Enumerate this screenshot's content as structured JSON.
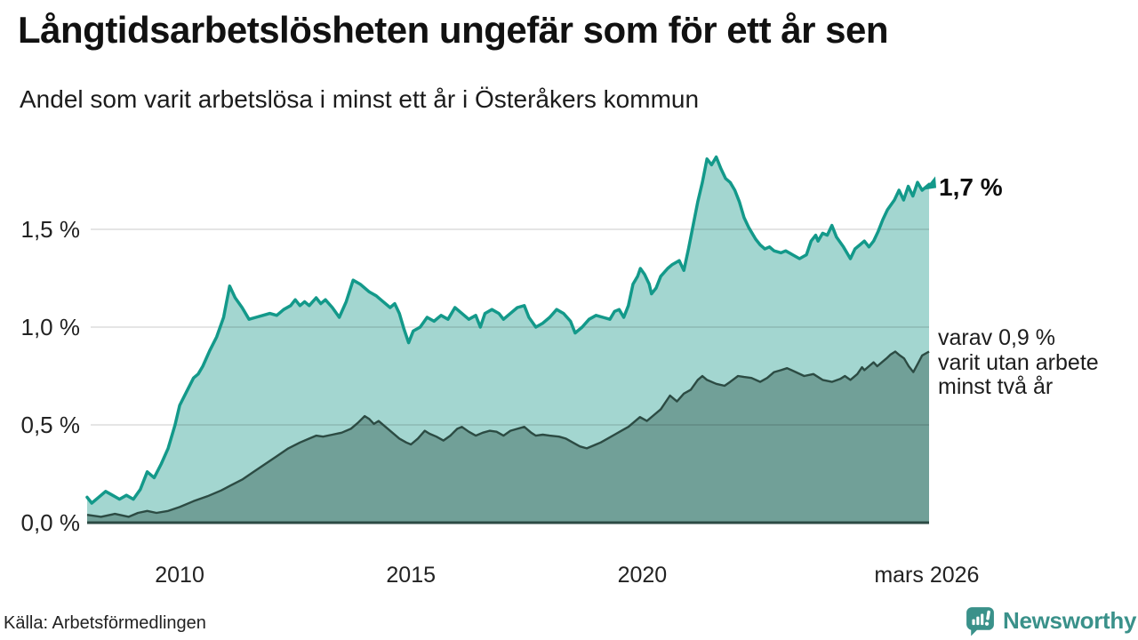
{
  "header": {
    "title": "Långtidsarbetslösheten ungefär som för ett år sen",
    "subtitle": "Andel som varit arbetslösa i minst ett år i Österåkers kommun"
  },
  "footer": {
    "source": "Källa: Arbetsförmedlingen",
    "brand": "Newsworthy"
  },
  "colors": {
    "series1_line": "#13998a",
    "series1_fill": "#a3d6d0",
    "series2_line": "#2c4b43",
    "series2_fill": "#71a098",
    "baseline": "#2c4a43",
    "gridline": "rgba(0,0,0,0.10)",
    "brand_teal": "#3a918a"
  },
  "chart_data": {
    "type": "area",
    "title": "Långtidsarbetslösheten ungefär som för ett år sen",
    "subtitle": "Andel som varit arbetslösa i minst ett år i Österåkers kommun",
    "xlim": [
      2008,
      2026.2
    ],
    "ylim": [
      0,
      1.9
    ],
    "grid": "horizontal",
    "x_ticks": [
      {
        "year": 2010,
        "label": "2010"
      },
      {
        "year": 2015,
        "label": "2015"
      },
      {
        "year": 2020,
        "label": "2020"
      },
      {
        "year": 2026.15,
        "label": "mars 2026"
      }
    ],
    "y_ticks": [
      {
        "value": 0.0,
        "label": "0,0 %"
      },
      {
        "value": 0.5,
        "label": "0,5 %"
      },
      {
        "value": 1.0,
        "label": "1,0 %"
      },
      {
        "value": 1.5,
        "label": "1,5 %"
      }
    ],
    "annotations": {
      "end_label": "1,7 %",
      "end_value": 1.7,
      "secondary_line1": "varav 0,9 %",
      "secondary_line2": "varit utan arbete",
      "secondary_line3": "minst två år",
      "secondary_value": 0.9
    },
    "series": [
      {
        "name": "Andel arbetslösa minst ett år",
        "points": [
          [
            2008.0,
            0.13
          ],
          [
            2008.1,
            0.1
          ],
          [
            2008.25,
            0.13
          ],
          [
            2008.4,
            0.16
          ],
          [
            2008.55,
            0.14
          ],
          [
            2008.7,
            0.12
          ],
          [
            2008.85,
            0.14
          ],
          [
            2009.0,
            0.12
          ],
          [
            2009.15,
            0.17
          ],
          [
            2009.3,
            0.26
          ],
          [
            2009.45,
            0.23
          ],
          [
            2009.6,
            0.3
          ],
          [
            2009.75,
            0.38
          ],
          [
            2009.9,
            0.5
          ],
          [
            2010.0,
            0.6
          ],
          [
            2010.15,
            0.67
          ],
          [
            2010.3,
            0.74
          ],
          [
            2010.4,
            0.76
          ],
          [
            2010.5,
            0.8
          ],
          [
            2010.65,
            0.88
          ],
          [
            2010.8,
            0.95
          ],
          [
            2010.95,
            1.05
          ],
          [
            2011.08,
            1.21
          ],
          [
            2011.2,
            1.15
          ],
          [
            2011.35,
            1.1
          ],
          [
            2011.5,
            1.04
          ],
          [
            2011.65,
            1.05
          ],
          [
            2011.8,
            1.06
          ],
          [
            2011.95,
            1.07
          ],
          [
            2012.1,
            1.06
          ],
          [
            2012.25,
            1.09
          ],
          [
            2012.4,
            1.11
          ],
          [
            2012.5,
            1.14
          ],
          [
            2012.6,
            1.11
          ],
          [
            2012.7,
            1.13
          ],
          [
            2012.8,
            1.11
          ],
          [
            2012.95,
            1.15
          ],
          [
            2013.05,
            1.12
          ],
          [
            2013.15,
            1.14
          ],
          [
            2013.3,
            1.1
          ],
          [
            2013.45,
            1.05
          ],
          [
            2013.6,
            1.13
          ],
          [
            2013.75,
            1.24
          ],
          [
            2013.9,
            1.22
          ],
          [
            2014.0,
            1.2
          ],
          [
            2014.1,
            1.18
          ],
          [
            2014.25,
            1.16
          ],
          [
            2014.4,
            1.13
          ],
          [
            2014.55,
            1.1
          ],
          [
            2014.65,
            1.12
          ],
          [
            2014.75,
            1.07
          ],
          [
            2014.85,
            0.99
          ],
          [
            2014.95,
            0.92
          ],
          [
            2015.05,
            0.98
          ],
          [
            2015.2,
            1.0
          ],
          [
            2015.35,
            1.05
          ],
          [
            2015.5,
            1.03
          ],
          [
            2015.65,
            1.06
          ],
          [
            2015.8,
            1.04
          ],
          [
            2015.95,
            1.1
          ],
          [
            2016.1,
            1.07
          ],
          [
            2016.25,
            1.04
          ],
          [
            2016.4,
            1.06
          ],
          [
            2016.5,
            1.0
          ],
          [
            2016.6,
            1.07
          ],
          [
            2016.75,
            1.09
          ],
          [
            2016.9,
            1.07
          ],
          [
            2017.0,
            1.04
          ],
          [
            2017.15,
            1.07
          ],
          [
            2017.3,
            1.1
          ],
          [
            2017.45,
            1.11
          ],
          [
            2017.55,
            1.05
          ],
          [
            2017.7,
            1.0
          ],
          [
            2017.85,
            1.02
          ],
          [
            2018.0,
            1.05
          ],
          [
            2018.15,
            1.09
          ],
          [
            2018.3,
            1.07
          ],
          [
            2018.45,
            1.03
          ],
          [
            2018.55,
            0.97
          ],
          [
            2018.7,
            1.0
          ],
          [
            2018.85,
            1.04
          ],
          [
            2019.0,
            1.06
          ],
          [
            2019.15,
            1.05
          ],
          [
            2019.3,
            1.04
          ],
          [
            2019.4,
            1.08
          ],
          [
            2019.5,
            1.09
          ],
          [
            2019.6,
            1.05
          ],
          [
            2019.7,
            1.11
          ],
          [
            2019.8,
            1.22
          ],
          [
            2019.9,
            1.26
          ],
          [
            2019.96,
            1.3
          ],
          [
            2020.05,
            1.27
          ],
          [
            2020.15,
            1.22
          ],
          [
            2020.2,
            1.17
          ],
          [
            2020.3,
            1.2
          ],
          [
            2020.4,
            1.26
          ],
          [
            2020.55,
            1.3
          ],
          [
            2020.65,
            1.32
          ],
          [
            2020.8,
            1.34
          ],
          [
            2020.9,
            1.29
          ],
          [
            2021.0,
            1.4
          ],
          [
            2021.1,
            1.52
          ],
          [
            2021.2,
            1.64
          ],
          [
            2021.3,
            1.74
          ],
          [
            2021.4,
            1.86
          ],
          [
            2021.5,
            1.83
          ],
          [
            2021.6,
            1.87
          ],
          [
            2021.7,
            1.81
          ],
          [
            2021.8,
            1.76
          ],
          [
            2021.9,
            1.74
          ],
          [
            2022.0,
            1.7
          ],
          [
            2022.1,
            1.64
          ],
          [
            2022.2,
            1.56
          ],
          [
            2022.3,
            1.51
          ],
          [
            2022.45,
            1.45
          ],
          [
            2022.55,
            1.42
          ],
          [
            2022.65,
            1.4
          ],
          [
            2022.75,
            1.41
          ],
          [
            2022.85,
            1.39
          ],
          [
            2023.0,
            1.38
          ],
          [
            2023.1,
            1.39
          ],
          [
            2023.25,
            1.37
          ],
          [
            2023.4,
            1.35
          ],
          [
            2023.55,
            1.37
          ],
          [
            2023.65,
            1.44
          ],
          [
            2023.75,
            1.47
          ],
          [
            2023.8,
            1.44
          ],
          [
            2023.9,
            1.48
          ],
          [
            2024.0,
            1.47
          ],
          [
            2024.1,
            1.52
          ],
          [
            2024.2,
            1.46
          ],
          [
            2024.35,
            1.41
          ],
          [
            2024.5,
            1.35
          ],
          [
            2024.6,
            1.4
          ],
          [
            2024.7,
            1.42
          ],
          [
            2024.8,
            1.44
          ],
          [
            2024.9,
            1.41
          ],
          [
            2025.0,
            1.44
          ],
          [
            2025.1,
            1.49
          ],
          [
            2025.2,
            1.55
          ],
          [
            2025.3,
            1.6
          ],
          [
            2025.45,
            1.65
          ],
          [
            2025.55,
            1.7
          ],
          [
            2025.65,
            1.65
          ],
          [
            2025.75,
            1.72
          ],
          [
            2025.85,
            1.67
          ],
          [
            2025.95,
            1.74
          ],
          [
            2026.05,
            1.7
          ],
          [
            2026.2,
            1.73
          ]
        ]
      },
      {
        "name": "varav utan arbete minst två år",
        "points": [
          [
            2008.0,
            0.04
          ],
          [
            2008.3,
            0.03
          ],
          [
            2008.6,
            0.045
          ],
          [
            2008.9,
            0.03
          ],
          [
            2009.1,
            0.05
          ],
          [
            2009.3,
            0.06
          ],
          [
            2009.5,
            0.05
          ],
          [
            2009.75,
            0.06
          ],
          [
            2010.0,
            0.08
          ],
          [
            2010.3,
            0.11
          ],
          [
            2010.6,
            0.135
          ],
          [
            2010.9,
            0.165
          ],
          [
            2011.1,
            0.19
          ],
          [
            2011.35,
            0.22
          ],
          [
            2011.6,
            0.26
          ],
          [
            2011.85,
            0.3
          ],
          [
            2012.1,
            0.34
          ],
          [
            2012.35,
            0.38
          ],
          [
            2012.6,
            0.41
          ],
          [
            2012.8,
            0.43
          ],
          [
            2012.95,
            0.445
          ],
          [
            2013.1,
            0.44
          ],
          [
            2013.3,
            0.45
          ],
          [
            2013.5,
            0.46
          ],
          [
            2013.7,
            0.48
          ],
          [
            2013.85,
            0.51
          ],
          [
            2014.0,
            0.545
          ],
          [
            2014.1,
            0.53
          ],
          [
            2014.2,
            0.505
          ],
          [
            2014.3,
            0.52
          ],
          [
            2014.45,
            0.49
          ],
          [
            2014.6,
            0.46
          ],
          [
            2014.75,
            0.43
          ],
          [
            2014.9,
            0.41
          ],
          [
            2015.0,
            0.4
          ],
          [
            2015.15,
            0.43
          ],
          [
            2015.3,
            0.47
          ],
          [
            2015.4,
            0.455
          ],
          [
            2015.55,
            0.44
          ],
          [
            2015.7,
            0.42
          ],
          [
            2015.85,
            0.445
          ],
          [
            2016.0,
            0.48
          ],
          [
            2016.1,
            0.49
          ],
          [
            2016.25,
            0.465
          ],
          [
            2016.4,
            0.445
          ],
          [
            2016.55,
            0.46
          ],
          [
            2016.7,
            0.47
          ],
          [
            2016.85,
            0.465
          ],
          [
            2017.0,
            0.445
          ],
          [
            2017.15,
            0.47
          ],
          [
            2017.3,
            0.48
          ],
          [
            2017.45,
            0.49
          ],
          [
            2017.6,
            0.46
          ],
          [
            2017.7,
            0.445
          ],
          [
            2017.85,
            0.45
          ],
          [
            2018.0,
            0.445
          ],
          [
            2018.2,
            0.44
          ],
          [
            2018.35,
            0.43
          ],
          [
            2018.5,
            0.41
          ],
          [
            2018.65,
            0.39
          ],
          [
            2018.8,
            0.38
          ],
          [
            2019.0,
            0.4
          ],
          [
            2019.1,
            0.41
          ],
          [
            2019.25,
            0.43
          ],
          [
            2019.4,
            0.45
          ],
          [
            2019.55,
            0.47
          ],
          [
            2019.7,
            0.49
          ],
          [
            2019.8,
            0.51
          ],
          [
            2019.95,
            0.54
          ],
          [
            2020.1,
            0.52
          ],
          [
            2020.25,
            0.55
          ],
          [
            2020.4,
            0.58
          ],
          [
            2020.6,
            0.65
          ],
          [
            2020.75,
            0.62
          ],
          [
            2020.9,
            0.66
          ],
          [
            2021.05,
            0.68
          ],
          [
            2021.2,
            0.73
          ],
          [
            2021.3,
            0.75
          ],
          [
            2021.4,
            0.73
          ],
          [
            2021.6,
            0.71
          ],
          [
            2021.78,
            0.7
          ],
          [
            2021.9,
            0.72
          ],
          [
            2022.07,
            0.75
          ],
          [
            2022.2,
            0.745
          ],
          [
            2022.36,
            0.74
          ],
          [
            2022.55,
            0.72
          ],
          [
            2022.7,
            0.74
          ],
          [
            2022.85,
            0.77
          ],
          [
            2023.0,
            0.78
          ],
          [
            2023.13,
            0.79
          ],
          [
            2023.32,
            0.77
          ],
          [
            2023.5,
            0.75
          ],
          [
            2023.7,
            0.76
          ],
          [
            2023.9,
            0.73
          ],
          [
            2024.1,
            0.72
          ],
          [
            2024.28,
            0.735
          ],
          [
            2024.38,
            0.75
          ],
          [
            2024.5,
            0.73
          ],
          [
            2024.65,
            0.76
          ],
          [
            2024.75,
            0.795
          ],
          [
            2024.8,
            0.78
          ],
          [
            2024.9,
            0.8
          ],
          [
            2025.0,
            0.82
          ],
          [
            2025.08,
            0.8
          ],
          [
            2025.18,
            0.82
          ],
          [
            2025.28,
            0.84
          ],
          [
            2025.37,
            0.86
          ],
          [
            2025.47,
            0.875
          ],
          [
            2025.57,
            0.855
          ],
          [
            2025.66,
            0.84
          ],
          [
            2025.76,
            0.8
          ],
          [
            2025.86,
            0.77
          ],
          [
            2025.95,
            0.81
          ],
          [
            2026.05,
            0.855
          ],
          [
            2026.2,
            0.875
          ]
        ]
      }
    ]
  }
}
